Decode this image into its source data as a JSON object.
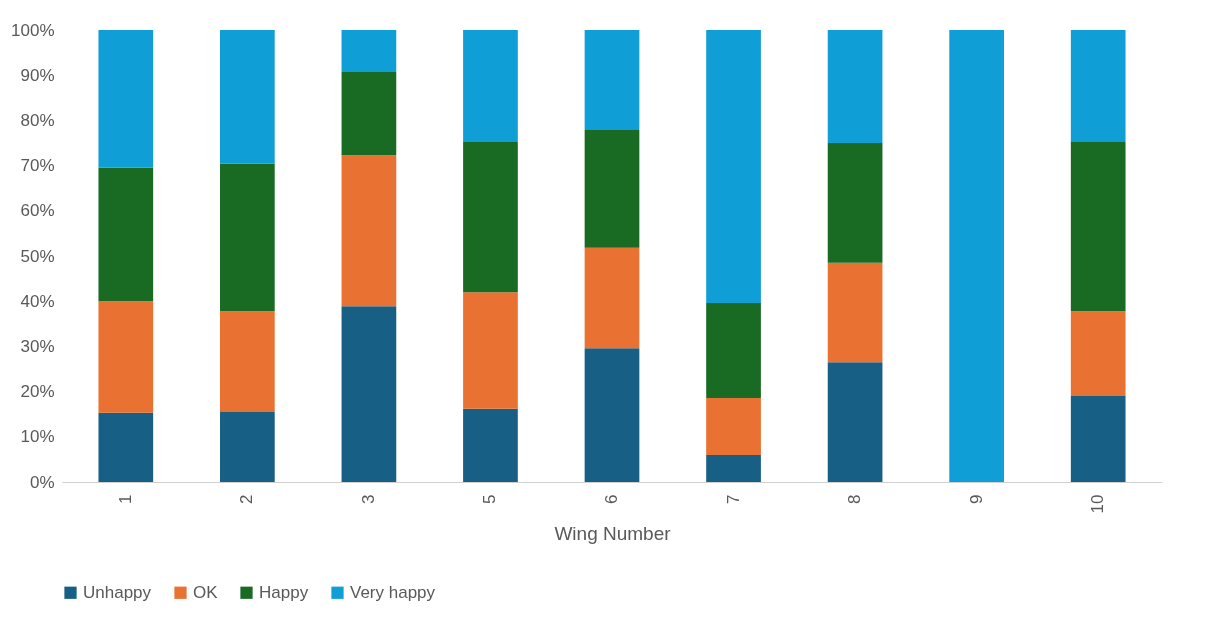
{
  "chart_data": {
    "type": "bar",
    "stacked": true,
    "xlabel": "Wing Number",
    "categories": [
      "1",
      "2",
      "3",
      "5",
      "6",
      "7",
      "8",
      "9",
      "10"
    ],
    "series": [
      {
        "name": "Unhappy",
        "color": "#175f84",
        "values": [
          15.3,
          15.5,
          38.9,
          16.2,
          29.6,
          6.0,
          26.5,
          0,
          19.0
        ]
      },
      {
        "name": "OK",
        "color": "#e97132",
        "values": [
          24.7,
          22.3,
          33.4,
          25.8,
          22.2,
          12.6,
          22.0,
          0,
          18.8
        ]
      },
      {
        "name": "Happy",
        "color": "#196b24",
        "values": [
          29.5,
          32.6,
          18.4,
          33.2,
          26.1,
          21.0,
          26.5,
          0,
          37.6
        ]
      },
      {
        "name": "Very happy",
        "color": "#0f9ed5",
        "values": [
          30.5,
          29.6,
          9.3,
          24.8,
          22.1,
          60.4,
          25.0,
          100,
          24.6
        ]
      }
    ],
    "ylim": [
      0,
      100
    ],
    "yticks": [
      {
        "value": 0,
        "label": "0%"
      },
      {
        "value": 10,
        "label": "10%"
      },
      {
        "value": 20,
        "label": "20%"
      },
      {
        "value": 30,
        "label": "30%"
      },
      {
        "value": 40,
        "label": "40%"
      },
      {
        "value": 50,
        "label": "50%"
      },
      {
        "value": 60,
        "label": "60%"
      },
      {
        "value": 70,
        "label": "70%"
      },
      {
        "value": 80,
        "label": "80%"
      },
      {
        "value": 90,
        "label": "90%"
      },
      {
        "value": 100,
        "label": "100%"
      }
    ],
    "grid": false,
    "legend": "bottom"
  }
}
